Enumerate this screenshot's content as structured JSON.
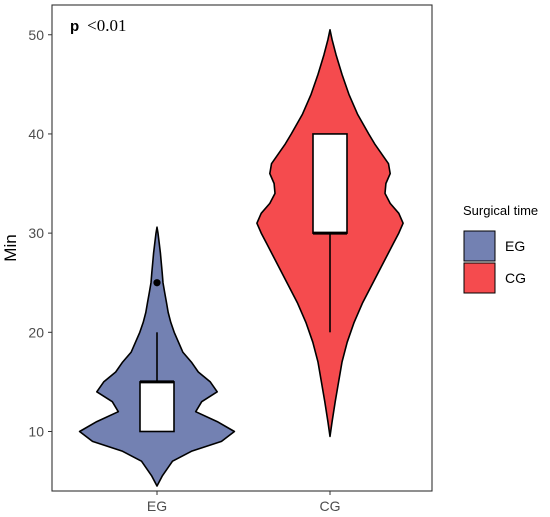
{
  "chart_data": {
    "type": "violin",
    "ylabel": "Min",
    "ylim": [
      4,
      53
    ],
    "yticks": [
      10,
      20,
      30,
      40,
      50
    ],
    "categories": [
      "EG",
      "CG"
    ],
    "annotation": {
      "bold": "p",
      "text": "<0.01"
    },
    "legend": {
      "title": "Surgical time",
      "position": "right",
      "items": [
        {
          "label": "EG",
          "color": "#7381b2"
        },
        {
          "label": "CG",
          "color": "#f54b4e"
        }
      ]
    },
    "grid": false,
    "series": [
      {
        "name": "EG",
        "color": "#7381b2",
        "box": {
          "min": 10,
          "q1": 10,
          "median": 15,
          "q3": 15,
          "max": 20,
          "outliers": [
            25
          ]
        },
        "density": [
          [
            4.5,
            0.0
          ],
          [
            5.5,
            0.06
          ],
          [
            7,
            0.18
          ],
          [
            8,
            0.4
          ],
          [
            9,
            0.75
          ],
          [
            10,
            0.9
          ],
          [
            11,
            0.7
          ],
          [
            12,
            0.45
          ],
          [
            13,
            0.52
          ],
          [
            14,
            0.7
          ],
          [
            15,
            0.62
          ],
          [
            16,
            0.48
          ],
          [
            17,
            0.4
          ],
          [
            18,
            0.3
          ],
          [
            19,
            0.25
          ],
          [
            20,
            0.2
          ],
          [
            21,
            0.16
          ],
          [
            22,
            0.13
          ],
          [
            23,
            0.11
          ],
          [
            24,
            0.09
          ],
          [
            25,
            0.07
          ],
          [
            26,
            0.06
          ],
          [
            27,
            0.05
          ],
          [
            28,
            0.04
          ],
          [
            29,
            0.025
          ],
          [
            30,
            0.012
          ],
          [
            30.6,
            0.0
          ]
        ]
      },
      {
        "name": "CG",
        "color": "#f54b4e",
        "box": {
          "min": 20,
          "q1": 30,
          "median": 30,
          "q3": 40,
          "max": 40,
          "outliers": []
        },
        "density": [
          [
            9.5,
            0.0
          ],
          [
            11,
            0.025
          ],
          [
            13,
            0.06
          ],
          [
            15,
            0.1
          ],
          [
            17,
            0.14
          ],
          [
            19,
            0.2
          ],
          [
            21,
            0.28
          ],
          [
            23,
            0.38
          ],
          [
            25,
            0.5
          ],
          [
            27,
            0.62
          ],
          [
            29,
            0.74
          ],
          [
            30,
            0.8
          ],
          [
            31,
            0.85
          ],
          [
            32,
            0.8
          ],
          [
            33,
            0.7
          ],
          [
            34,
            0.64
          ],
          [
            35,
            0.65
          ],
          [
            36,
            0.7
          ],
          [
            37,
            0.68
          ],
          [
            38,
            0.6
          ],
          [
            39,
            0.52
          ],
          [
            40,
            0.45
          ],
          [
            42,
            0.32
          ],
          [
            44,
            0.22
          ],
          [
            46,
            0.14
          ],
          [
            48,
            0.07
          ],
          [
            49.5,
            0.025
          ],
          [
            50.5,
            0.0
          ]
        ]
      }
    ]
  }
}
